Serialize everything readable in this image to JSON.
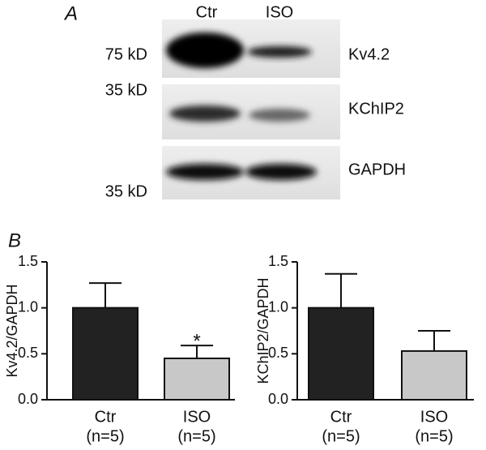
{
  "panel_a": {
    "label": "A",
    "lanes": [
      "Ctr",
      "ISO"
    ],
    "markers": [
      "75 kD",
      "35 kD",
      "35 kD"
    ],
    "proteins": [
      "Kv4.2",
      "KChIP2",
      "GAPDH"
    ]
  },
  "panel_b": {
    "label": "B"
  },
  "chart_data": [
    {
      "type": "bar",
      "y_label": "Kv4.2/GAPDH",
      "categories": [
        [
          "Ctr",
          "(n=5)"
        ],
        [
          "ISO",
          "(n=5)"
        ]
      ],
      "values": [
        1.0,
        0.45
      ],
      "errors": [
        0.27,
        0.14
      ],
      "colors": [
        "#222222",
        "#c8c8c8"
      ],
      "ylim": [
        0,
        1.5
      ],
      "yticks": [
        {
          "value": 0,
          "label": "0.0"
        },
        {
          "value": 0.5,
          "label": "0.5"
        },
        {
          "value": 1,
          "label": "1.0"
        },
        {
          "value": 1.5,
          "label": "1.5"
        }
      ],
      "annotation": "*"
    },
    {
      "type": "bar",
      "y_label": "KChIP2/GAPDH",
      "categories": [
        [
          "Ctr",
          "(n=5)"
        ],
        [
          "ISO",
          "(n=5)"
        ]
      ],
      "values": [
        1.0,
        0.53
      ],
      "errors": [
        0.37,
        0.22
      ],
      "colors": [
        "#222222",
        "#c8c8c8"
      ],
      "ylim": [
        0,
        1.5
      ],
      "yticks": [
        {
          "value": 0,
          "label": "0.0"
        },
        {
          "value": 0.5,
          "label": "0.5"
        },
        {
          "value": 1,
          "label": "1.0"
        },
        {
          "value": 1.5,
          "label": "1.5"
        }
      ]
    }
  ]
}
